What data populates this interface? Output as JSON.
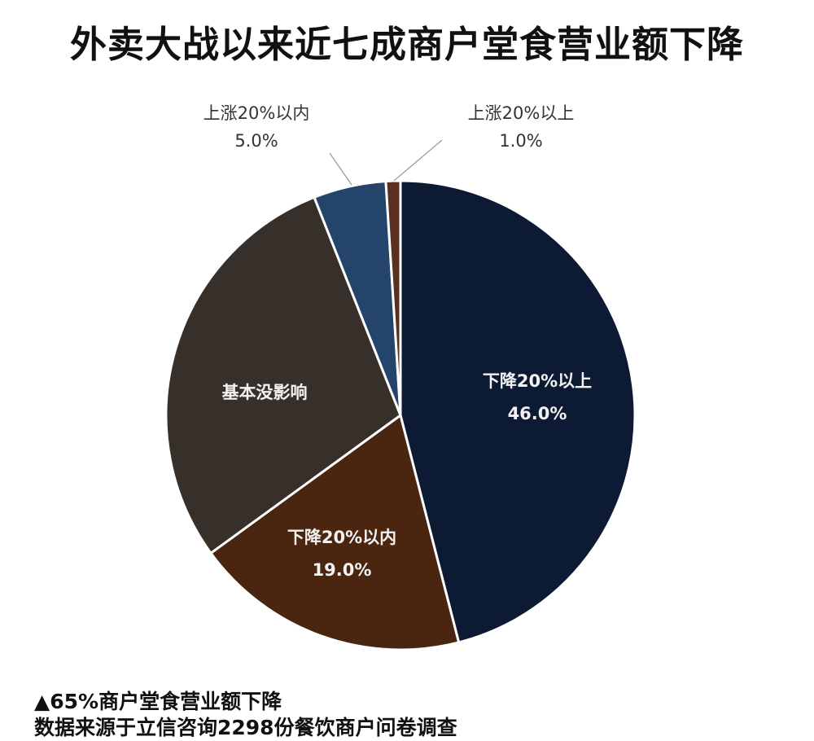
{
  "title": "外卖大战以来近七成商户堂食营业额下降",
  "chart_data": {
    "type": "pie",
    "title": "外卖大战以来近七成商户堂食营业额下降",
    "categories": [
      "下降20%以上",
      "下降20%以内",
      "基本没影响",
      "上涨20%以内",
      "上涨20%以上"
    ],
    "values": [
      46.0,
      19.0,
      29.0,
      5.0,
      1.0
    ],
    "value_labels": [
      "46.0%",
      "19.0%",
      "",
      "5.0%",
      "1.0%"
    ],
    "colors": [
      "#0d1a33",
      "#4a2510",
      "#37302a",
      "#25446b",
      "#5a3020"
    ],
    "start_angle": "12 o'clock, clockwise",
    "legend": "none (direct labels)"
  },
  "labels": {
    "down_over20": {
      "name": "下降20%以上",
      "value": "46.0%"
    },
    "down_within20": {
      "name": "下降20%以内",
      "value": "19.0%"
    },
    "no_effect": {
      "name": "基本没影响"
    },
    "up_within20": {
      "name": "上涨20%以内",
      "value": "5.0%"
    },
    "up_over20": {
      "name": "上涨20%以上",
      "value": "1.0%"
    }
  },
  "footnotes": {
    "line1": "▲65%商户堂食营业额下降",
    "line2": "数据来源于立信咨询2298份餐饮商户问卷调查"
  }
}
